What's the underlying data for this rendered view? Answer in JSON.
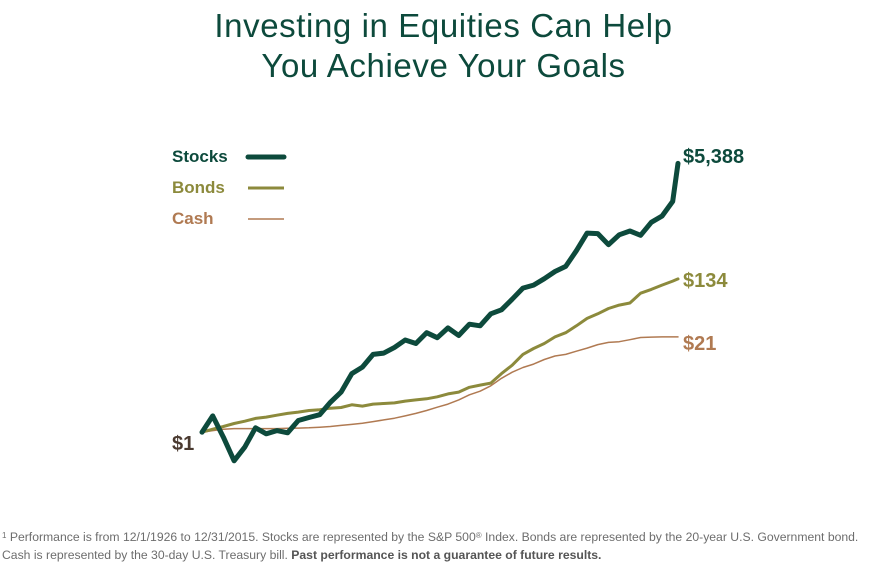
{
  "title": {
    "line1": "Investing in Equities Can Help",
    "line2": "You Achieve Your Goals"
  },
  "colors": {
    "title": "#0d4a3c",
    "stocks": "#0d4a3c",
    "bonds": "#8c8a3c",
    "cash": "#b07a52",
    "start_label": "#4a3a30",
    "footnote": "#6d6d6d"
  },
  "chart_data": {
    "type": "line",
    "scale": "log",
    "x": [
      1926,
      1928,
      1930,
      1932,
      1934,
      1936,
      1938,
      1940,
      1942,
      1944,
      1946,
      1948,
      1950,
      1952,
      1954,
      1956,
      1958,
      1960,
      1962,
      1964,
      1966,
      1968,
      1970,
      1972,
      1974,
      1976,
      1978,
      1980,
      1982,
      1984,
      1986,
      1988,
      1990,
      1992,
      1994,
      1996,
      1998,
      2000,
      2002,
      2004,
      2006,
      2008,
      2010,
      2012,
      2014,
      2015
    ],
    "series": [
      {
        "name": "Stocks",
        "values": [
          1.0,
          1.68,
          0.85,
          0.4,
          0.62,
          1.15,
          0.95,
          1.05,
          0.98,
          1.45,
          1.6,
          1.75,
          2.6,
          3.6,
          6.5,
          8.0,
          12.0,
          12.5,
          15.0,
          19.0,
          17.0,
          24.0,
          20.5,
          28.0,
          22.0,
          31.5,
          30.0,
          44.0,
          50.0,
          70.0,
          100.0,
          110.0,
          135.0,
          170.0,
          200.0,
          330.0,
          580.0,
          570.0,
          400.0,
          550.0,
          620.0,
          540.0,
          820.0,
          1000.0,
          1600.0,
          5388.0
        ]
      },
      {
        "name": "Bonds",
        "values": [
          1.0,
          1.1,
          1.2,
          1.32,
          1.42,
          1.55,
          1.62,
          1.72,
          1.82,
          1.9,
          2.0,
          2.05,
          2.15,
          2.2,
          2.4,
          2.3,
          2.45,
          2.5,
          2.55,
          2.7,
          2.8,
          2.9,
          3.1,
          3.4,
          3.6,
          4.2,
          4.5,
          4.8,
          6.5,
          8.5,
          12.0,
          14.5,
          17.0,
          21.0,
          24.0,
          30.0,
          38.0,
          44.0,
          52.0,
          58.0,
          62.0,
          85.0,
          96.0,
          110.0,
          125.0,
          134.0
        ]
      },
      {
        "name": "Cash",
        "values": [
          1.0,
          1.05,
          1.1,
          1.12,
          1.12,
          1.12,
          1.12,
          1.12,
          1.13,
          1.14,
          1.15,
          1.17,
          1.2,
          1.24,
          1.28,
          1.33,
          1.4,
          1.48,
          1.56,
          1.68,
          1.82,
          2.0,
          2.22,
          2.45,
          2.8,
          3.3,
          3.7,
          4.4,
          5.6,
          6.8,
          7.9,
          8.8,
          10.2,
          11.4,
          12.0,
          13.3,
          14.7,
          16.4,
          17.6,
          18.0,
          19.2,
          20.6,
          20.9,
          21.0,
          21.0,
          21.0
        ]
      }
    ],
    "legend": {
      "position": "top-left",
      "entries": [
        "Stocks",
        "Bonds",
        "Cash"
      ]
    },
    "labels": {
      "start": "$1",
      "stocks_end": "$5,388",
      "bonds_end": "$134",
      "cash_end": "$21"
    },
    "ylim": [
      0.35,
      6000
    ],
    "axes_visible": false,
    "grid": false
  },
  "footnote": {
    "marker": "1",
    "text": " Performance is from 12/1/1926 to 12/31/2015. Stocks are represented by the S&P 500",
    "registered": "®",
    "text2": " Index. Bonds are represented by the 20-year U.S. Government bond. Cash is represented by the 30-day U.S. Treasury bill. ",
    "bold": "Past performance is not a guarantee of future results."
  }
}
